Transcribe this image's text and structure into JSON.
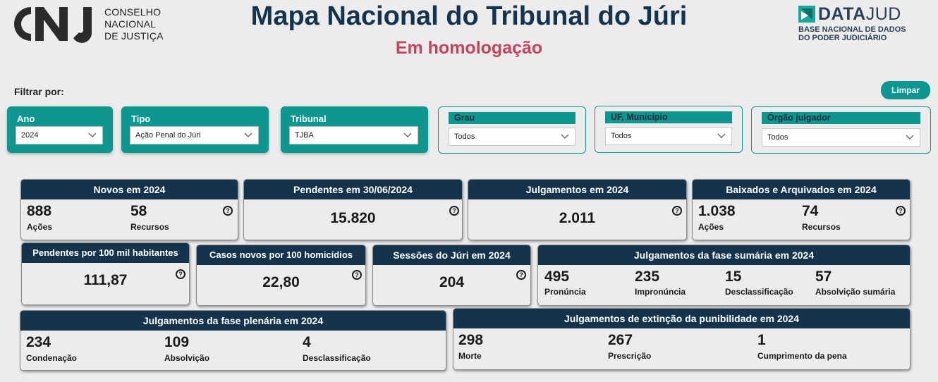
{
  "header": {
    "cnj_lines": [
      "CONSELHO",
      "NACIONAL",
      "DE JUSTIÇA"
    ],
    "title": "Mapa Nacional do Tribunal do Júri",
    "subtitle": "Em homologação",
    "datajud_bold": "DATA",
    "datajud_light": "JUD",
    "datajud_sub1": "BASE NACIONAL DE DADOS",
    "datajud_sub2": "DO PODER JUDICIÁRIO"
  },
  "filters": {
    "label": "Filtrar por:",
    "clear_label": "Limpar",
    "ano": {
      "label": "Ano",
      "value": "2024"
    },
    "tipo": {
      "label": "Tipo",
      "value": "Ação Penal do Júri"
    },
    "tribunal": {
      "label": "Tribunal",
      "value": "TJBA"
    },
    "grau": {
      "label": "Grau",
      "value": "Todos"
    },
    "uf": {
      "label": "UF, Município",
      "value": "Todos"
    },
    "orgao": {
      "label": "Órgão julgador",
      "value": "Todos"
    }
  },
  "help_glyph": "?",
  "cards": {
    "novos": {
      "title": "Novos em 2024",
      "v1": "888",
      "l1": "Ações",
      "v2": "58",
      "l2": "Recursos"
    },
    "pendentes": {
      "title": "Pendentes em 30/06/2024",
      "value": "15.820"
    },
    "julgamentos": {
      "title": "Julgamentos em 2024",
      "value": "2.011"
    },
    "baixados": {
      "title": "Baixados e Arquivados em 2024",
      "v1": "1.038",
      "l1": "Ações",
      "v2": "74",
      "l2": "Recursos"
    },
    "pend100": {
      "title": "Pendentes por 100 mil habitantes",
      "value": "111,87"
    },
    "casos100": {
      "title": "Casos novos por 100 homicídios",
      "value": "22,80"
    },
    "sessoes": {
      "title": "Sessões do Júri em 2024",
      "value": "204"
    },
    "sumaria": {
      "title": "Julgamentos da fase sumária em 2024",
      "items": [
        {
          "value": "495",
          "label": "Pronúncia"
        },
        {
          "value": "235",
          "label": "Impronúncia"
        },
        {
          "value": "15",
          "label": "Desclassificação"
        },
        {
          "value": "57",
          "label": "Absolvição sumária"
        }
      ]
    },
    "plenaria": {
      "title": "Julgamentos da fase plenária em 2024",
      "items": [
        {
          "value": "234",
          "label": "Condenação"
        },
        {
          "value": "109",
          "label": "Absolvição"
        },
        {
          "value": "4",
          "label": "Desclassificação"
        }
      ]
    },
    "extincao": {
      "title": "Julgamentos de extinção da punibilidade em 2024",
      "items": [
        {
          "value": "298",
          "label": "Morte"
        },
        {
          "value": "267",
          "label": "Prescrição"
        },
        {
          "value": "1",
          "label": "Cumprimento da pena"
        }
      ]
    }
  }
}
